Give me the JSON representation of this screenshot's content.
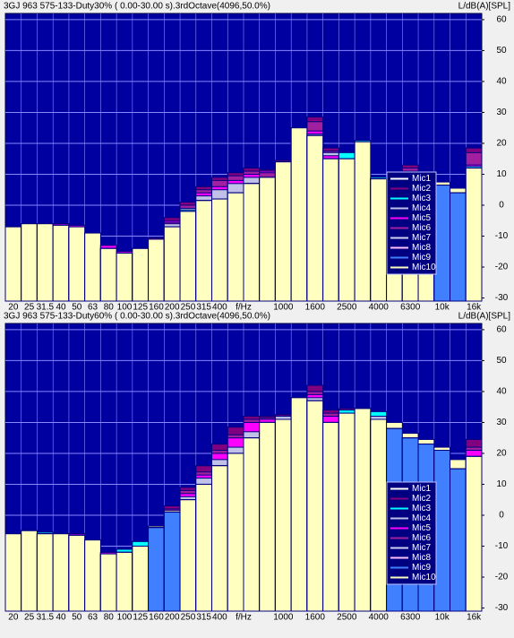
{
  "chart_data": [
    {
      "type": "bar",
      "title": "3GJ 963 575-133-Duty30% ( 0.00-30.00 s).3rdOctave(4096,50.0%)",
      "y_label": "L/dB(A)[SPL]",
      "x_label": "f/Hz",
      "categories": [
        "20",
        "25",
        "31.5",
        "40",
        "50",
        "63",
        "80",
        "100",
        "125",
        "160",
        "200",
        "250",
        "315",
        "400",
        null,
        null,
        null,
        "1000",
        null,
        "1600",
        null,
        "2500",
        null,
        "4000",
        null,
        "6300",
        null,
        "10k",
        null,
        "16k"
      ],
      "ylim": [
        -31,
        62
      ],
      "yticks": [
        -30,
        -20,
        -10,
        0,
        10,
        20,
        30,
        40,
        50,
        60
      ],
      "grid": true,
      "legend": "right",
      "series": [
        {
          "name": "Mic1",
          "color": "#ffffff",
          "values": [
            -7,
            -6,
            -6,
            -6.5,
            -7,
            -9,
            -14,
            -15.5,
            -14,
            -11,
            -7,
            -2,
            1.5,
            2,
            4,
            7,
            9,
            14,
            25,
            22.5,
            15,
            15,
            20.5,
            8.5,
            9,
            10,
            9,
            6.5,
            4,
            12
          ]
        },
        {
          "name": "Mic2",
          "color": "#800080",
          "values": [
            -7,
            -6,
            -6,
            -6,
            -6.5,
            -9,
            -13,
            -15,
            -14,
            -10.5,
            -4,
            1,
            6,
            9,
            10.5,
            12,
            11.5,
            14.5,
            25,
            28.5,
            18.5,
            15,
            21,
            8.5,
            9,
            13,
            9,
            6.5,
            4,
            18.5
          ]
        },
        {
          "name": "Mic3",
          "color": "#00ffff",
          "values": [
            -7,
            -6,
            -6,
            -6.5,
            -7,
            -9,
            -14,
            -15.5,
            -14,
            -11,
            -7,
            -1.5,
            1.5,
            2,
            4,
            7,
            9,
            14,
            25,
            22.5,
            15,
            17,
            21,
            9,
            9,
            10,
            9,
            6.5,
            4,
            12.5
          ]
        },
        {
          "name": "Mic4",
          "color": "#c0c0e8",
          "values": [
            -7,
            -6,
            -6,
            -6.5,
            -7,
            -9,
            -14,
            -15.5,
            -14,
            -11,
            -6,
            -1,
            3,
            5,
            7,
            9,
            11,
            14,
            25,
            23,
            17,
            15,
            20.5,
            8.5,
            9,
            10,
            9,
            6.5,
            4,
            12
          ]
        },
        {
          "name": "Mic5",
          "color": "#ff00ff",
          "values": [
            -7,
            -6,
            -6,
            -6,
            -6.5,
            -9,
            -13,
            -15,
            -14,
            -11,
            -5,
            0,
            4,
            6,
            8,
            10,
            11,
            14,
            25,
            24,
            16,
            15,
            20.5,
            8.5,
            9,
            11,
            9,
            6.5,
            4,
            13
          ]
        },
        {
          "name": "Mic6",
          "color": "#a020a0",
          "values": [
            -7,
            -6,
            -6,
            -6.5,
            -7,
            -9,
            -14,
            -15.5,
            -14,
            -11,
            -5.5,
            0,
            5,
            8,
            9.5,
            11,
            10.5,
            14,
            25,
            27,
            17.5,
            15,
            20.5,
            8.5,
            9,
            12,
            9,
            6.5,
            4,
            17
          ]
        },
        {
          "name": "Mic7",
          "color": "#d0d0f0",
          "values": [
            -7,
            -6,
            -6,
            -6.5,
            -7,
            -9,
            -14,
            -15.5,
            -14,
            -11,
            -7,
            -2,
            1.5,
            2,
            4,
            7,
            9,
            14,
            25,
            22.5,
            15,
            15,
            20.5,
            8.5,
            9,
            10,
            9,
            6.5,
            4,
            12
          ]
        },
        {
          "name": "Mic8",
          "color": "#ffc0ff",
          "values": [
            -7,
            -6,
            -6,
            -6.5,
            -7,
            -9,
            -14,
            -15.5,
            -14,
            -11,
            -7,
            -2,
            1.5,
            2,
            4,
            7,
            9,
            14,
            25,
            22.5,
            15,
            15,
            20.5,
            8.5,
            9,
            10,
            9,
            6.5,
            4,
            12
          ]
        },
        {
          "name": "Mic9",
          "color": "#4080ff",
          "values": [
            -7,
            -6,
            -6,
            -6.5,
            -7,
            -9,
            -14,
            -15.5,
            -14,
            -11,
            -7,
            -2,
            1.5,
            2,
            4,
            7,
            9,
            14,
            25,
            22.5,
            15,
            15,
            20.5,
            8.5,
            9,
            10,
            9,
            6.5,
            4,
            12
          ]
        },
        {
          "name": "Mic10",
          "color": "#ffffc0",
          "values": [
            -7,
            -6,
            -6,
            -6.5,
            -7,
            -9,
            -14,
            -15.5,
            -14,
            -11,
            -7,
            -2,
            1.5,
            2,
            4,
            7,
            9,
            14,
            25,
            22.5,
            15,
            15,
            20.5,
            8.5,
            9,
            10,
            9,
            7.5,
            5.5,
            12
          ]
        }
      ]
    },
    {
      "type": "bar",
      "title": "3GJ 963 575-133-Duty60% ( 0.00-30.00 s).3rdOctave(4096,50.0%)",
      "y_label": "L/dB(A)[SPL]",
      "x_label": "f/Hz",
      "categories": [
        "20",
        "25",
        "31.5",
        "40",
        "50",
        "63",
        "80",
        "100",
        "125",
        "160",
        "200",
        "250",
        "315",
        "400",
        null,
        null,
        null,
        "1000",
        null,
        "1600",
        null,
        "2500",
        null,
        "4000",
        null,
        "6300",
        null,
        "10k",
        null,
        "16k"
      ],
      "ylim": [
        -31,
        62
      ],
      "yticks": [
        -30,
        -20,
        -10,
        0,
        10,
        20,
        30,
        40,
        50,
        60
      ],
      "grid": true,
      "legend": "right",
      "series": [
        {
          "name": "Mic1",
          "color": "#ffffff",
          "values": [
            -6,
            -5,
            -6,
            -6,
            -6.5,
            -8,
            -12.5,
            -12,
            -10,
            -4,
            1,
            5,
            10,
            16,
            20,
            25,
            30,
            31,
            38,
            37,
            30,
            33,
            34.5,
            31,
            28,
            25,
            23,
            21,
            15,
            19
          ]
        },
        {
          "name": "Mic2",
          "color": "#800080",
          "values": [
            -6,
            -5,
            -6,
            -6,
            -6,
            -8,
            -12,
            -12,
            -10,
            -4,
            3,
            9,
            16,
            23,
            28.5,
            32,
            32,
            32.5,
            38,
            42,
            34,
            34.5,
            34.5,
            31,
            28,
            25,
            23,
            21,
            15,
            24.5
          ]
        },
        {
          "name": "Mic3",
          "color": "#00ffff",
          "values": [
            -6,
            -5,
            -5.5,
            -6,
            -6.5,
            -8,
            -12.5,
            -11,
            -8.5,
            -4,
            1,
            5,
            10,
            16,
            20,
            25,
            30,
            31,
            38,
            37,
            30,
            34,
            34.5,
            33.5,
            28,
            25,
            23,
            21,
            15,
            19
          ]
        },
        {
          "name": "Mic4",
          "color": "#c0c0e8",
          "values": [
            -6,
            -5,
            -6,
            -6,
            -6.5,
            -8,
            -12.5,
            -12,
            -10,
            -4,
            1,
            6,
            12,
            18,
            22,
            27,
            31,
            32,
            38,
            38,
            32,
            33,
            34.5,
            32,
            28,
            25,
            23,
            21,
            15,
            19
          ]
        },
        {
          "name": "Mic5",
          "color": "#ff00ff",
          "values": [
            -6,
            -5,
            -6,
            -6,
            -6,
            -8,
            -12,
            -12,
            -10,
            -4,
            2,
            7,
            13,
            20,
            25,
            30,
            31,
            31,
            38,
            39,
            32,
            33,
            34.5,
            31,
            28,
            25,
            23,
            21,
            15,
            21
          ]
        },
        {
          "name": "Mic6",
          "color": "#a020a0",
          "values": [
            -6,
            -5,
            -6,
            -6,
            -6.5,
            -8,
            -12.5,
            -12,
            -10,
            -4,
            2,
            8,
            14,
            21,
            26,
            31,
            31.5,
            31,
            38,
            40,
            33,
            33,
            34.5,
            31,
            28,
            25,
            23,
            21,
            15,
            22
          ]
        },
        {
          "name": "Mic7",
          "color": "#d0d0f0",
          "values": [
            -6,
            -5,
            -6,
            -6,
            -6.5,
            -8,
            -12.5,
            -12,
            -10,
            -4,
            1,
            5,
            10,
            16,
            20,
            25,
            30,
            31,
            38,
            37,
            30,
            33,
            34.5,
            31,
            28,
            25,
            23,
            21,
            15,
            19
          ]
        },
        {
          "name": "Mic8",
          "color": "#ffc0ff",
          "values": [
            -6,
            -5,
            -6,
            -6,
            -6.5,
            -8,
            -12.5,
            -12,
            -10,
            -4,
            1,
            5,
            10,
            16,
            20,
            25,
            30,
            31,
            38,
            37,
            30,
            33,
            34.5,
            31,
            28,
            25,
            23,
            21,
            15,
            19
          ]
        },
        {
          "name": "Mic9",
          "color": "#4080ff",
          "values": [
            -6,
            -5,
            -6,
            -6,
            -6.5,
            -8,
            -12.5,
            -12,
            -10,
            -4,
            1,
            5,
            10,
            16,
            20,
            25,
            30,
            31,
            38,
            37,
            30,
            33,
            34.5,
            31,
            28,
            25,
            23,
            21,
            15,
            19
          ]
        },
        {
          "name": "Mic10",
          "color": "#ffffc0",
          "values": [
            -6,
            -5,
            -6,
            -6,
            -6.5,
            -8,
            -12.5,
            -12,
            -10,
            -3.5,
            1.5,
            5,
            10,
            16,
            20,
            25,
            30,
            31,
            38,
            37,
            30,
            33,
            34.5,
            31,
            30,
            26.5,
            24.5,
            22,
            18,
            19
          ]
        }
      ]
    }
  ]
}
